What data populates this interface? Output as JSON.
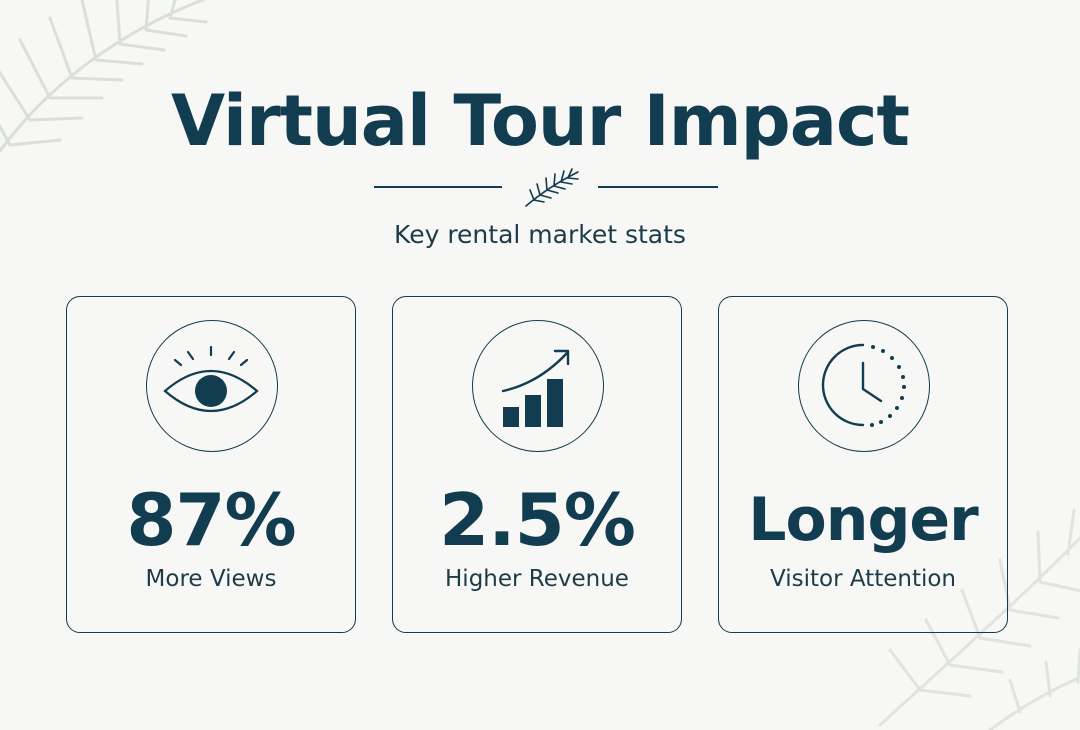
{
  "header": {
    "title": "Virtual Tour Impact",
    "subtitle": "Key rental market stats"
  },
  "cards": [
    {
      "value": "87%",
      "label": "More Views",
      "icon": "eye-icon"
    },
    {
      "value": "2.5%",
      "label": "Higher Revenue",
      "icon": "bar-chart-growth-icon"
    },
    {
      "value": "Longer",
      "label": "Visitor Attention",
      "icon": "clock-icon"
    }
  ],
  "colors": {
    "background": "#f7f7f5",
    "primary": "#123c4f",
    "decor": "#dfe3df"
  }
}
